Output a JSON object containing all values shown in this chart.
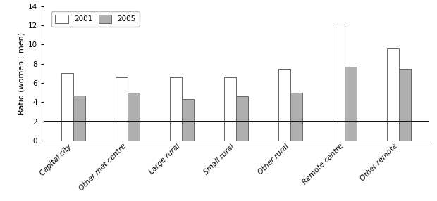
{
  "categories": [
    "Capital city",
    "Other met centre",
    "Large rural",
    "Small rural",
    "Other rural",
    "Remote centre",
    "Other remote"
  ],
  "values_2001": [
    7.0,
    6.6,
    6.6,
    6.6,
    7.5,
    12.1,
    9.6
  ],
  "values_2005": [
    4.7,
    5.0,
    4.3,
    4.6,
    5.0,
    7.7,
    7.5
  ],
  "bar_color_2001": "#ffffff",
  "bar_color_2005": "#b0b0b0",
  "bar_edgecolor": "#666666",
  "bar_width": 0.22,
  "ylim": [
    0,
    14
  ],
  "yticks": [
    0,
    2,
    4,
    6,
    8,
    10,
    12,
    14
  ],
  "ylabel": "Ratio (women : men)",
  "hline_y": 2.0,
  "hline_color": "#111111",
  "legend_labels": [
    "2001",
    "2005"
  ],
  "axis_fontsize": 8,
  "tick_fontsize": 7.5,
  "label_fontsize": 7.5,
  "background_color": "#ffffff"
}
